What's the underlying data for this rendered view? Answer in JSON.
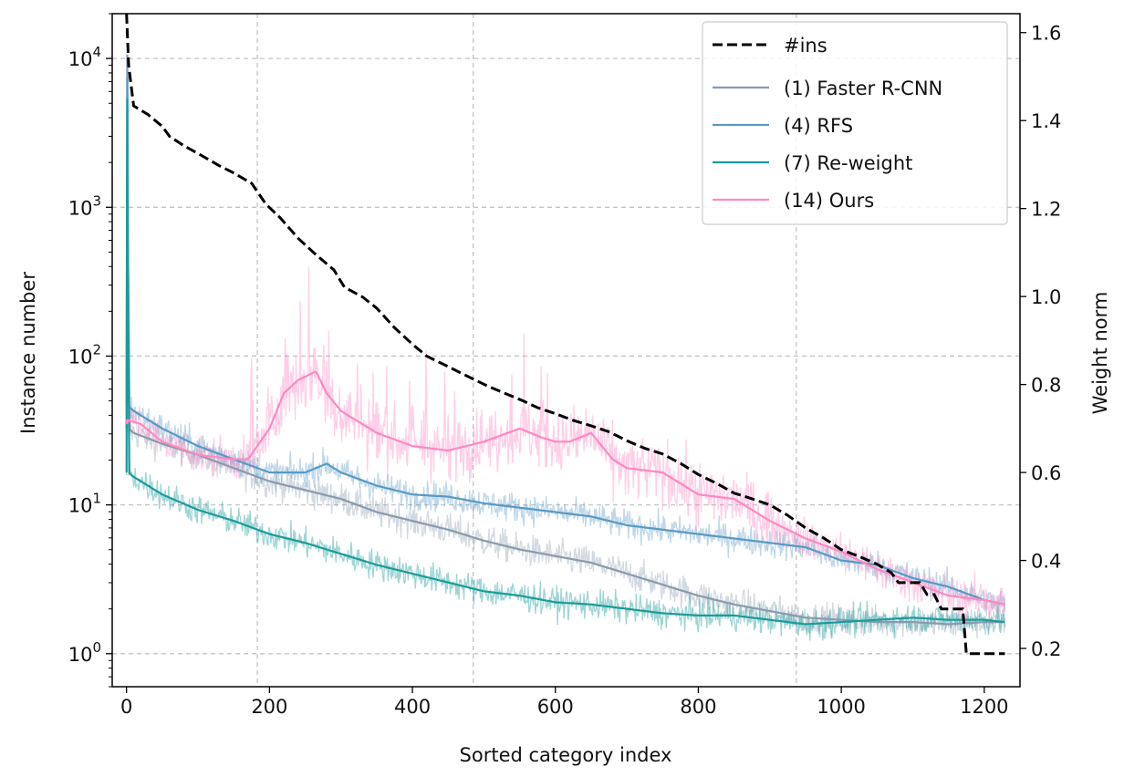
{
  "chart_data": {
    "type": "line",
    "xlabel": "Sorted category index",
    "ylabel_left": "Instance number",
    "ylabel_right": "Weight norm",
    "xlim": [
      -20,
      1250
    ],
    "x_ticks": [
      0,
      200,
      400,
      600,
      800,
      1000,
      1200
    ],
    "ylim_left": [
      0.6,
      20000
    ],
    "y_scale_left": "log",
    "y_ticks_left": [
      {
        "value": 1,
        "base": "10",
        "exp": "0"
      },
      {
        "value": 10,
        "base": "10",
        "exp": "1"
      },
      {
        "value": 100,
        "base": "10",
        "exp": "2"
      },
      {
        "value": 1000,
        "base": "10",
        "exp": "3"
      },
      {
        "value": 10000,
        "base": "10",
        "exp": "4"
      }
    ],
    "ylim_right": [
      0.113,
      1.643
    ],
    "y_ticks_right": [
      0.2,
      0.4,
      0.6,
      0.8,
      1.0,
      1.2,
      1.4,
      1.6
    ],
    "grid": "dashed",
    "grid_vertical_lines": [
      183,
      485,
      937
    ],
    "legend_position": "top-right",
    "series": [
      {
        "name": "#ins",
        "axis": "left",
        "style": "dashed",
        "color": "#000000",
        "x": [
          0,
          3,
          10,
          30,
          50,
          60,
          80,
          100,
          130,
          150,
          175,
          195,
          215,
          240,
          265,
          290,
          305,
          330,
          350,
          375,
          400,
          420,
          450,
          480,
          505,
          530,
          555,
          575,
          600,
          625,
          650,
          675,
          700,
          725,
          750,
          775,
          800,
          825,
          850,
          875,
          900,
          925,
          950,
          975,
          1000,
          1025,
          1050,
          1070,
          1080,
          1100,
          1110,
          1120,
          1130,
          1140,
          1150,
          1165,
          1170,
          1175,
          1180,
          1200,
          1229
        ],
        "values": [
          20000,
          9000,
          4800,
          4200,
          3500,
          3000,
          2600,
          2300,
          1900,
          1700,
          1450,
          1050,
          850,
          620,
          480,
          380,
          290,
          250,
          210,
          155,
          120,
          100,
          85,
          72,
          63,
          56,
          50,
          45,
          41,
          37,
          34,
          31,
          27,
          24,
          22,
          19,
          16,
          14,
          12,
          11,
          10,
          8.5,
          7,
          6,
          5,
          4.5,
          4,
          3.5,
          3,
          3,
          3,
          2.5,
          2.5,
          2,
          2,
          2,
          2,
          1,
          1,
          1,
          1
        ]
      },
      {
        "name": "(1) Faster R-CNN",
        "axis": "right",
        "style": "solid",
        "color": "#8a9aae",
        "x": [
          0,
          1,
          3,
          10,
          50,
          100,
          150,
          200,
          250,
          300,
          350,
          400,
          450,
          500,
          550,
          600,
          650,
          700,
          750,
          800,
          850,
          900,
          950,
          1000,
          1050,
          1100,
          1150,
          1200,
          1229
        ],
        "values": [
          0.7,
          1.55,
          0.7,
          0.69,
          0.665,
          0.64,
          0.61,
          0.58,
          0.56,
          0.54,
          0.51,
          0.49,
          0.47,
          0.445,
          0.425,
          0.41,
          0.395,
          0.37,
          0.345,
          0.32,
          0.3,
          0.285,
          0.27,
          0.265,
          0.26,
          0.26,
          0.255,
          0.26,
          0.26
        ]
      },
      {
        "name": "(4) RFS",
        "axis": "right",
        "style": "solid",
        "color": "#5899c4",
        "x": [
          0,
          1,
          3,
          10,
          50,
          100,
          150,
          200,
          250,
          280,
          300,
          350,
          400,
          450,
          500,
          550,
          600,
          650,
          700,
          750,
          800,
          850,
          900,
          950,
          1000,
          1050,
          1100,
          1150,
          1200,
          1229
        ],
        "values": [
          0.75,
          1.5,
          0.75,
          0.74,
          0.7,
          0.66,
          0.63,
          0.6,
          0.6,
          0.62,
          0.6,
          0.57,
          0.55,
          0.545,
          0.53,
          0.52,
          0.51,
          0.5,
          0.48,
          0.47,
          0.46,
          0.45,
          0.44,
          0.43,
          0.4,
          0.39,
          0.36,
          0.34,
          0.31,
          0.3
        ]
      },
      {
        "name": "(7) Re-weight",
        "axis": "right",
        "style": "solid",
        "color": "#1a9b9b",
        "x": [
          0,
          1,
          3,
          10,
          50,
          100,
          150,
          200,
          250,
          300,
          350,
          400,
          450,
          500,
          550,
          600,
          650,
          700,
          750,
          800,
          850,
          900,
          950,
          1000,
          1050,
          1100,
          1150,
          1200,
          1229
        ],
        "values": [
          0.6,
          1.45,
          0.6,
          0.59,
          0.55,
          0.515,
          0.49,
          0.46,
          0.44,
          0.415,
          0.39,
          0.37,
          0.35,
          0.33,
          0.32,
          0.305,
          0.3,
          0.29,
          0.28,
          0.275,
          0.275,
          0.265,
          0.255,
          0.26,
          0.265,
          0.27,
          0.265,
          0.265,
          0.26
        ]
      },
      {
        "name": "(14) Ours",
        "axis": "right",
        "style": "solid",
        "color": "#ff88c2",
        "x": [
          0,
          20,
          50,
          100,
          150,
          170,
          200,
          220,
          240,
          265,
          280,
          300,
          350,
          400,
          450,
          500,
          550,
          580,
          600,
          620,
          650,
          680,
          700,
          750,
          800,
          850,
          900,
          950,
          1000,
          1050,
          1100,
          1150,
          1200,
          1229
        ],
        "values": [
          0.72,
          0.71,
          0.67,
          0.64,
          0.63,
          0.63,
          0.7,
          0.78,
          0.81,
          0.83,
          0.78,
          0.74,
          0.69,
          0.66,
          0.65,
          0.67,
          0.7,
          0.68,
          0.67,
          0.67,
          0.69,
          0.63,
          0.61,
          0.6,
          0.55,
          0.54,
          0.49,
          0.45,
          0.42,
          0.38,
          0.35,
          0.32,
          0.31,
          0.3
        ]
      }
    ]
  }
}
